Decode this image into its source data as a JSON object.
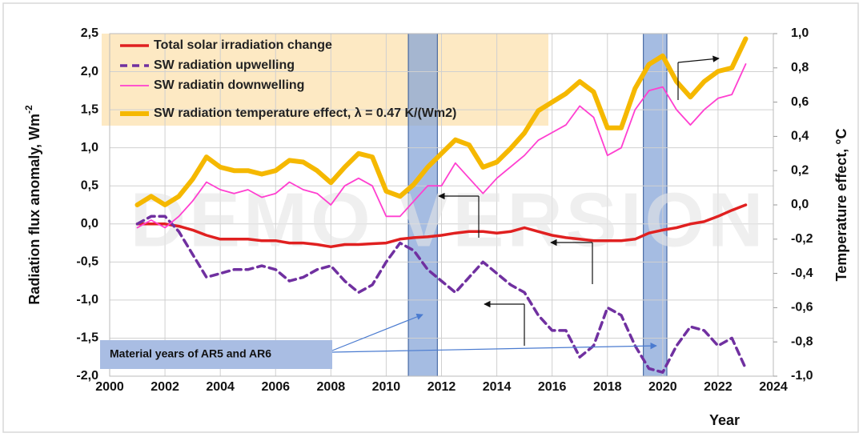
{
  "chart_data": {
    "type": "line",
    "ylabel": "Radiation flux anomaly,  Wm",
    "ylabel_superscript": "-2",
    "y2label": "Temperature effect, °C",
    "xlabel": "Year",
    "watermark": "DEMO VERSION",
    "annotation": "Material years of AR5 and AR6",
    "shaded_regions": [
      [
        2010.8,
        2011.85
      ],
      [
        2019.3,
        2020.15
      ]
    ],
    "xlim": [
      2000,
      2024
    ],
    "xticks": [
      2000,
      2002,
      2004,
      2006,
      2008,
      2010,
      2012,
      2014,
      2016,
      2018,
      2020,
      2022,
      2024
    ],
    "ylim": [
      -2.0,
      2.5
    ],
    "yticks": [
      {
        "value": -2.0,
        "label": "-2,0"
      },
      {
        "value": -1.5,
        "label": "-1,5"
      },
      {
        "value": -1.0,
        "label": "-1,0"
      },
      {
        "value": -0.5,
        "label": "-0,5"
      },
      {
        "value": 0.0,
        "label": "0,0"
      },
      {
        "value": 0.5,
        "label": "0,5"
      },
      {
        "value": 1.0,
        "label": "1,0"
      },
      {
        "value": 1.5,
        "label": "1,5"
      },
      {
        "value": 2.0,
        "label": "2,0"
      },
      {
        "value": 2.5,
        "label": "2,5"
      }
    ],
    "y2lim": [
      -1.0,
      1.0
    ],
    "y2ticks": [
      {
        "value": -1.0,
        "label": "-1,0"
      },
      {
        "value": -0.8,
        "label": "-0,8"
      },
      {
        "value": -0.6,
        "label": "-0,6"
      },
      {
        "value": -0.4,
        "label": "-0,4"
      },
      {
        "value": -0.2,
        "label": "-0,2"
      },
      {
        "value": 0.0,
        "label": "0,0"
      },
      {
        "value": 0.2,
        "label": "0,2"
      },
      {
        "value": 0.4,
        "label": "0,4"
      },
      {
        "value": 0.6,
        "label": "0,6"
      },
      {
        "value": 0.8,
        "label": "0,8"
      },
      {
        "value": 1.0,
        "label": "1,0"
      }
    ],
    "grid": true,
    "x": [
      2001,
      2001.5,
      2002,
      2002.5,
      2003,
      2003.5,
      2004,
      2004.5,
      2005,
      2005.5,
      2006,
      2006.5,
      2007,
      2007.5,
      2008,
      2008.5,
      2009,
      2009.5,
      2010,
      2010.5,
      2011,
      2011.5,
      2012,
      2012.5,
      2013,
      2013.5,
      2014,
      2014.5,
      2015,
      2015.5,
      2016,
      2016.5,
      2017,
      2017.5,
      2018,
      2018.5,
      2019,
      2019.5,
      2020,
      2020.5,
      2021,
      2021.5,
      2022,
      2022.5,
      2023
    ],
    "series": [
      {
        "name": "Total solar irradiation change",
        "color": "#e02020",
        "values": [
          0,
          0,
          0,
          -0.03,
          -0.08,
          -0.15,
          -0.2,
          -0.2,
          -0.2,
          -0.22,
          -0.22,
          -0.25,
          -0.25,
          -0.27,
          -0.3,
          -0.27,
          -0.27,
          -0.26,
          -0.25,
          -0.2,
          -0.18,
          -0.17,
          -0.15,
          -0.12,
          -0.1,
          -0.1,
          -0.12,
          -0.1,
          -0.05,
          -0.1,
          -0.15,
          -0.18,
          -0.2,
          -0.22,
          -0.22,
          -0.22,
          -0.2,
          -0.12,
          -0.08,
          -0.05,
          0,
          0.03,
          0.1,
          0.18,
          0.25
        ]
      },
      {
        "name": "SW radiation upwelling",
        "color": "#7030a0",
        "dashed": true,
        "values": [
          0.0,
          0.1,
          0.1,
          -0.1,
          -0.4,
          -0.7,
          -0.65,
          -0.6,
          -0.6,
          -0.55,
          -0.6,
          -0.75,
          -0.7,
          -0.6,
          -0.55,
          -0.75,
          -0.9,
          -0.8,
          -0.5,
          -0.25,
          -0.35,
          -0.6,
          -0.75,
          -0.9,
          -0.7,
          -0.5,
          -0.65,
          -0.8,
          -0.9,
          -1.2,
          -1.4,
          -1.4,
          -1.75,
          -1.6,
          -1.1,
          -1.2,
          -1.6,
          -1.9,
          -1.95,
          -1.6,
          -1.35,
          -1.4,
          -1.6,
          -1.5,
          -1.9
        ]
      },
      {
        "name": "SW radiatin downwelling",
        "color": "#ff3fd0",
        "values": [
          -0.05,
          0.05,
          -0.05,
          0.1,
          0.3,
          0.55,
          0.45,
          0.4,
          0.45,
          0.35,
          0.4,
          0.55,
          0.45,
          0.4,
          0.25,
          0.5,
          0.6,
          0.5,
          0.1,
          0.1,
          0.3,
          0.5,
          0.5,
          0.8,
          0.6,
          0.4,
          0.6,
          0.75,
          0.9,
          1.1,
          1.2,
          1.3,
          1.55,
          1.4,
          0.9,
          1.0,
          1.5,
          1.75,
          1.8,
          1.5,
          1.3,
          1.5,
          1.65,
          1.7,
          2.1
        ]
      },
      {
        "name": "SW radiation temperature effect, λ = 0.47 K/(Wm2)",
        "color": "#f5b800",
        "axis": "y2",
        "values": [
          0.0,
          0.05,
          0.0,
          0.05,
          0.15,
          0.28,
          0.22,
          0.2,
          0.2,
          0.18,
          0.2,
          0.26,
          0.25,
          0.2,
          0.13,
          0.22,
          0.3,
          0.28,
          0.08,
          0.05,
          0.12,
          0.22,
          0.3,
          0.38,
          0.35,
          0.22,
          0.25,
          0.33,
          0.42,
          0.55,
          0.6,
          0.65,
          0.72,
          0.66,
          0.45,
          0.45,
          0.68,
          0.82,
          0.87,
          0.72,
          0.63,
          0.72,
          0.78,
          0.8,
          0.97
        ]
      }
    ]
  }
}
